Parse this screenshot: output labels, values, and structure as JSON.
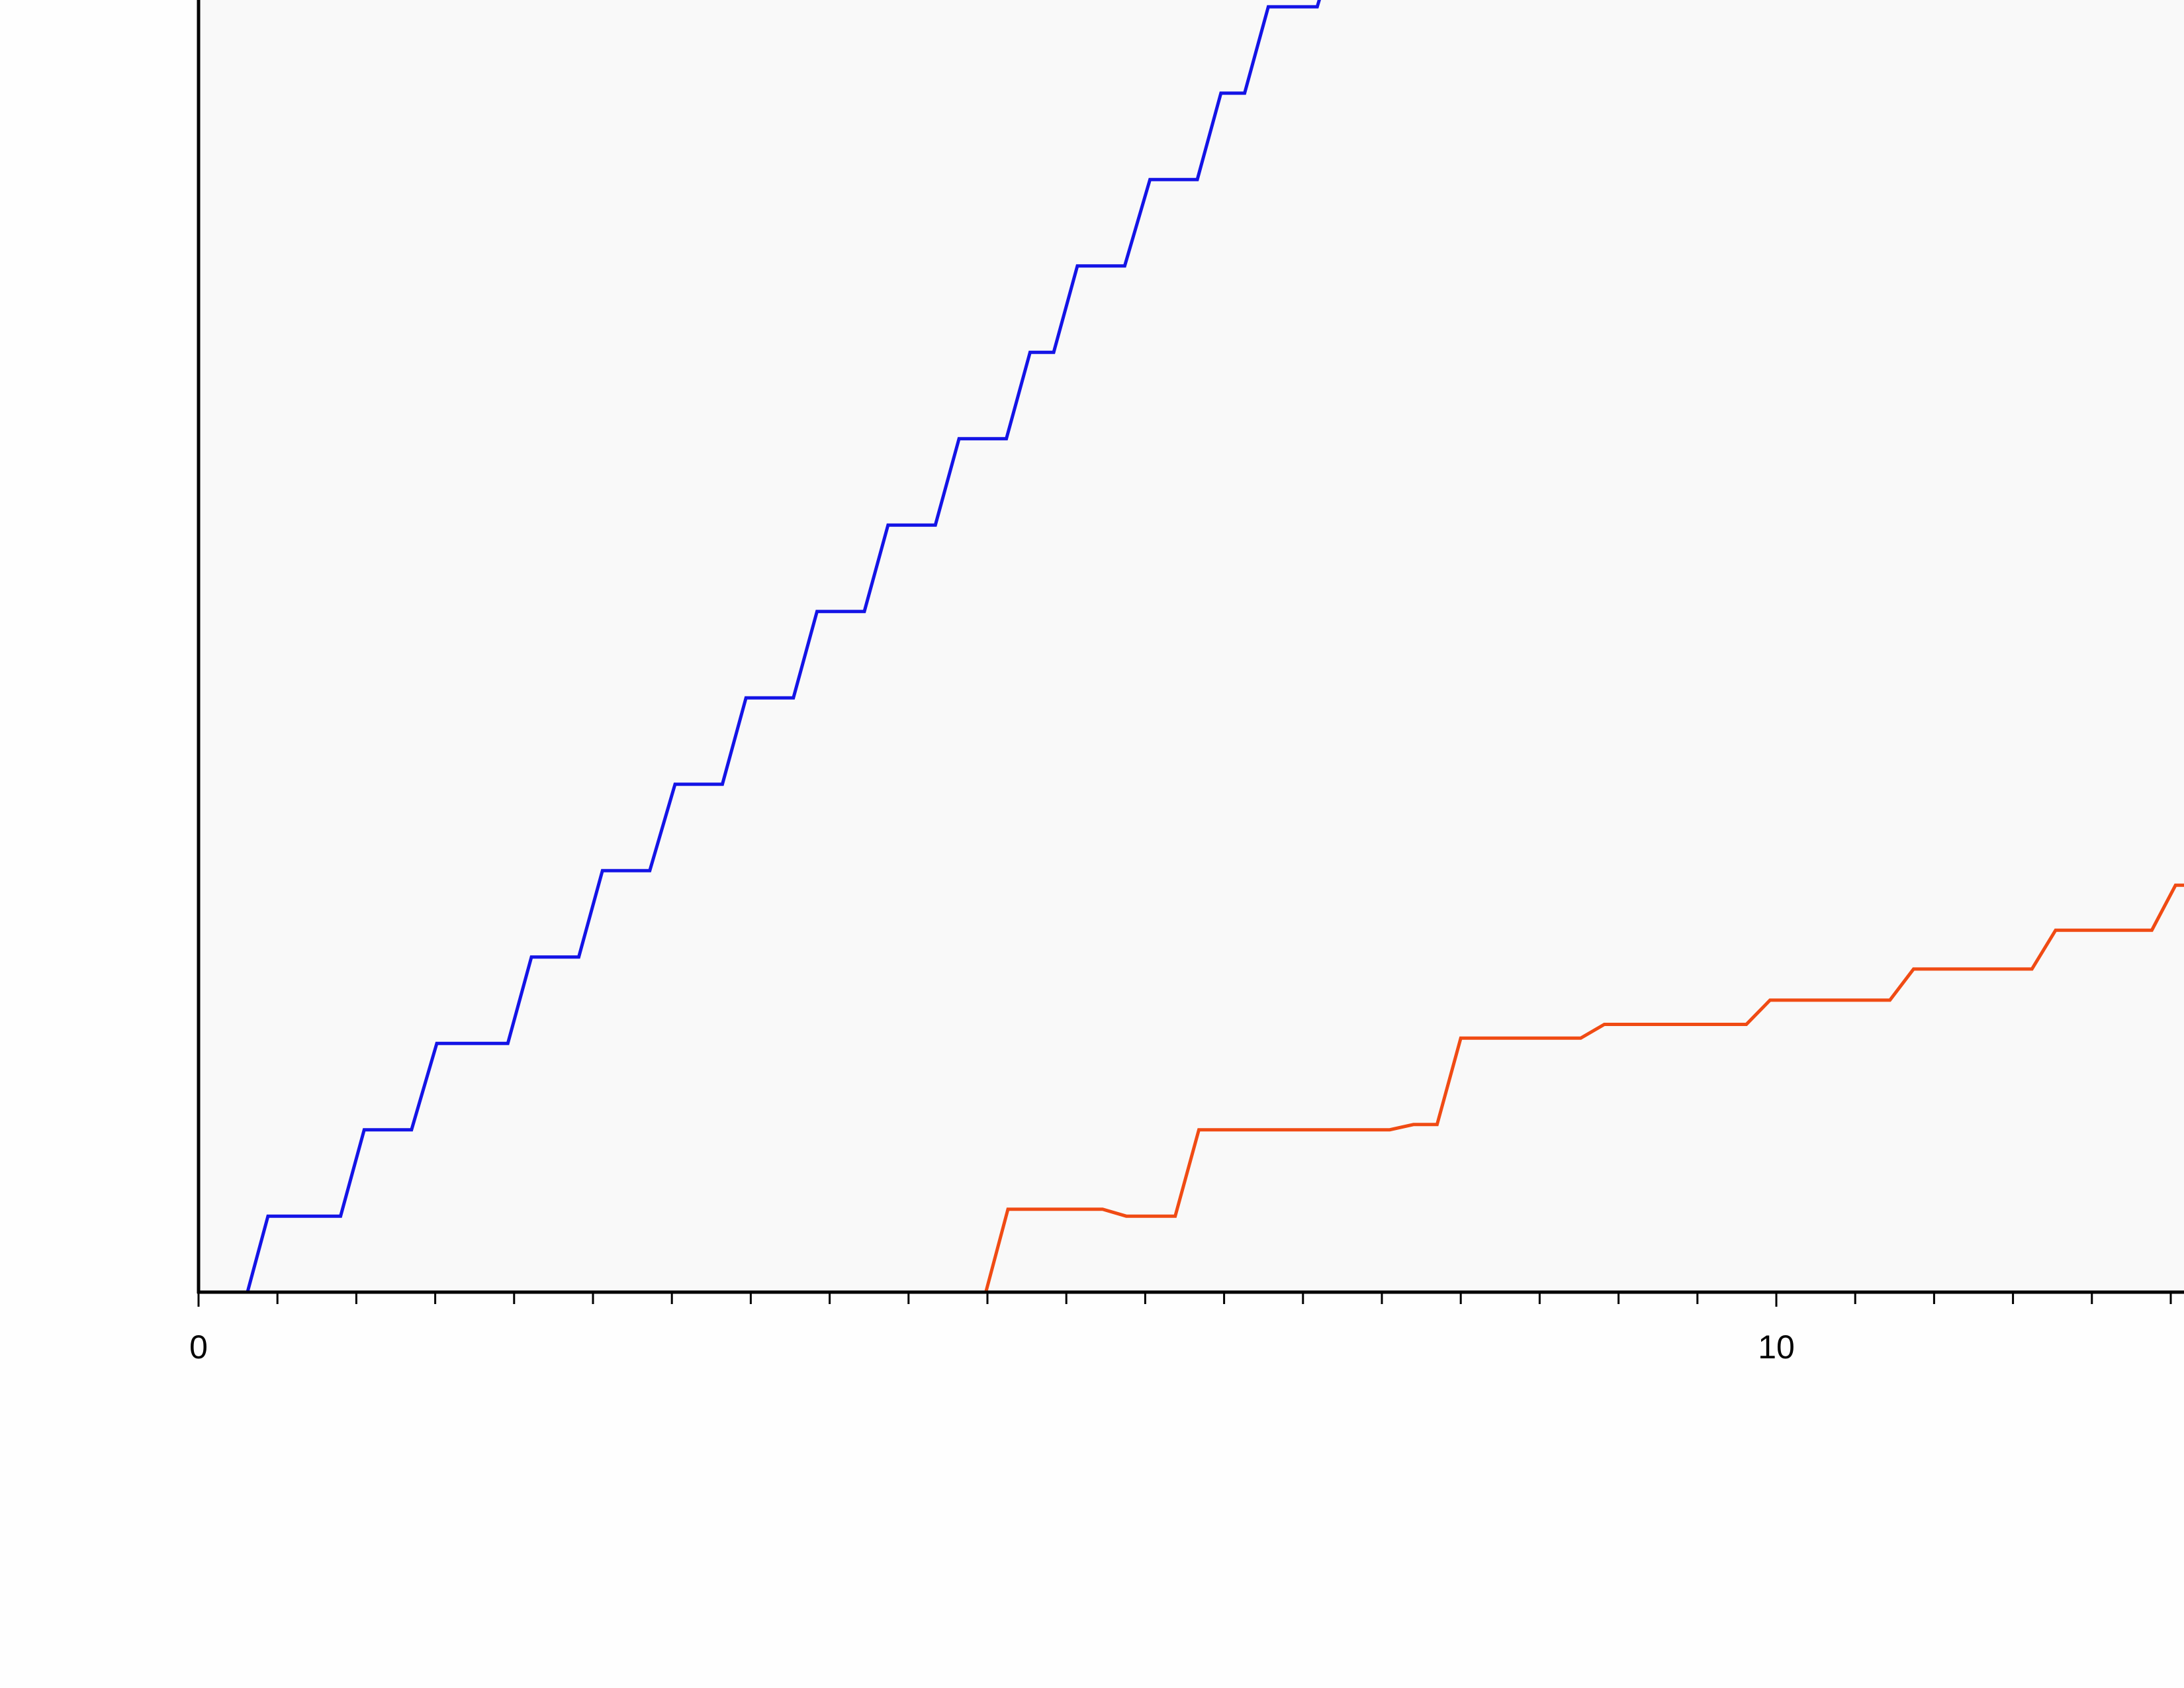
{
  "chart_data": {
    "type": "line",
    "title": "",
    "xlabel": "",
    "ylabel": "",
    "xlim": [
      0,
      12.6
    ],
    "ylim": [
      0,
      15
    ],
    "x_ticks": {
      "labeled": [
        0,
        10
      ],
      "minor_step": 0.5
    },
    "y_ticks": [],
    "grid": false,
    "legend": "none",
    "colors": {
      "plot_background": "#f9f9f9",
      "page_background": "#fefefe",
      "axis": "#000000"
    },
    "series": [
      {
        "color": "#1414e6",
        "points": [
          [
            0.31,
            0.0
          ],
          [
            0.44,
            0.88
          ],
          [
            0.9,
            0.88
          ],
          [
            1.05,
            1.88
          ],
          [
            1.35,
            1.88
          ],
          [
            1.51,
            2.88
          ],
          [
            1.96,
            2.88
          ],
          [
            2.11,
            3.88
          ],
          [
            2.41,
            3.88
          ],
          [
            2.56,
            4.88
          ],
          [
            2.86,
            4.88
          ],
          [
            3.02,
            5.88
          ],
          [
            3.32,
            5.88
          ],
          [
            3.47,
            6.88
          ],
          [
            3.77,
            6.88
          ],
          [
            3.92,
            7.88
          ],
          [
            4.22,
            7.88
          ],
          [
            4.37,
            8.88
          ],
          [
            4.67,
            8.88
          ],
          [
            4.82,
            9.88
          ],
          [
            5.12,
            9.88
          ],
          [
            5.27,
            10.88
          ],
          [
            5.42,
            10.88
          ],
          [
            5.57,
            11.88
          ],
          [
            5.87,
            11.88
          ],
          [
            6.03,
            12.88
          ],
          [
            6.33,
            12.88
          ],
          [
            6.48,
            13.88
          ],
          [
            6.63,
            13.88
          ],
          [
            6.78,
            14.88
          ],
          [
            7.09,
            14.88
          ],
          [
            7.11,
            15.0
          ]
        ]
      },
      {
        "color": "#f04b14",
        "points": [
          [
            0.0,
            0.0
          ],
          [
            4.99,
            0.0
          ],
          [
            5.13,
            0.96
          ],
          [
            5.73,
            0.96
          ],
          [
            5.88,
            0.88
          ],
          [
            6.19,
            0.88
          ],
          [
            6.34,
            1.88
          ],
          [
            7.55,
            1.88
          ],
          [
            7.7,
            1.94
          ],
          [
            7.85,
            1.94
          ],
          [
            8.0,
            2.94
          ],
          [
            8.76,
            2.94
          ],
          [
            8.91,
            3.1
          ],
          [
            9.81,
            3.1
          ],
          [
            9.96,
            3.38
          ],
          [
            10.72,
            3.38
          ],
          [
            10.87,
            3.74
          ],
          [
            11.62,
            3.74
          ],
          [
            11.77,
            4.19
          ],
          [
            12.38,
            4.19
          ],
          [
            12.53,
            4.71
          ],
          [
            12.6,
            4.71
          ]
        ]
      }
    ]
  }
}
